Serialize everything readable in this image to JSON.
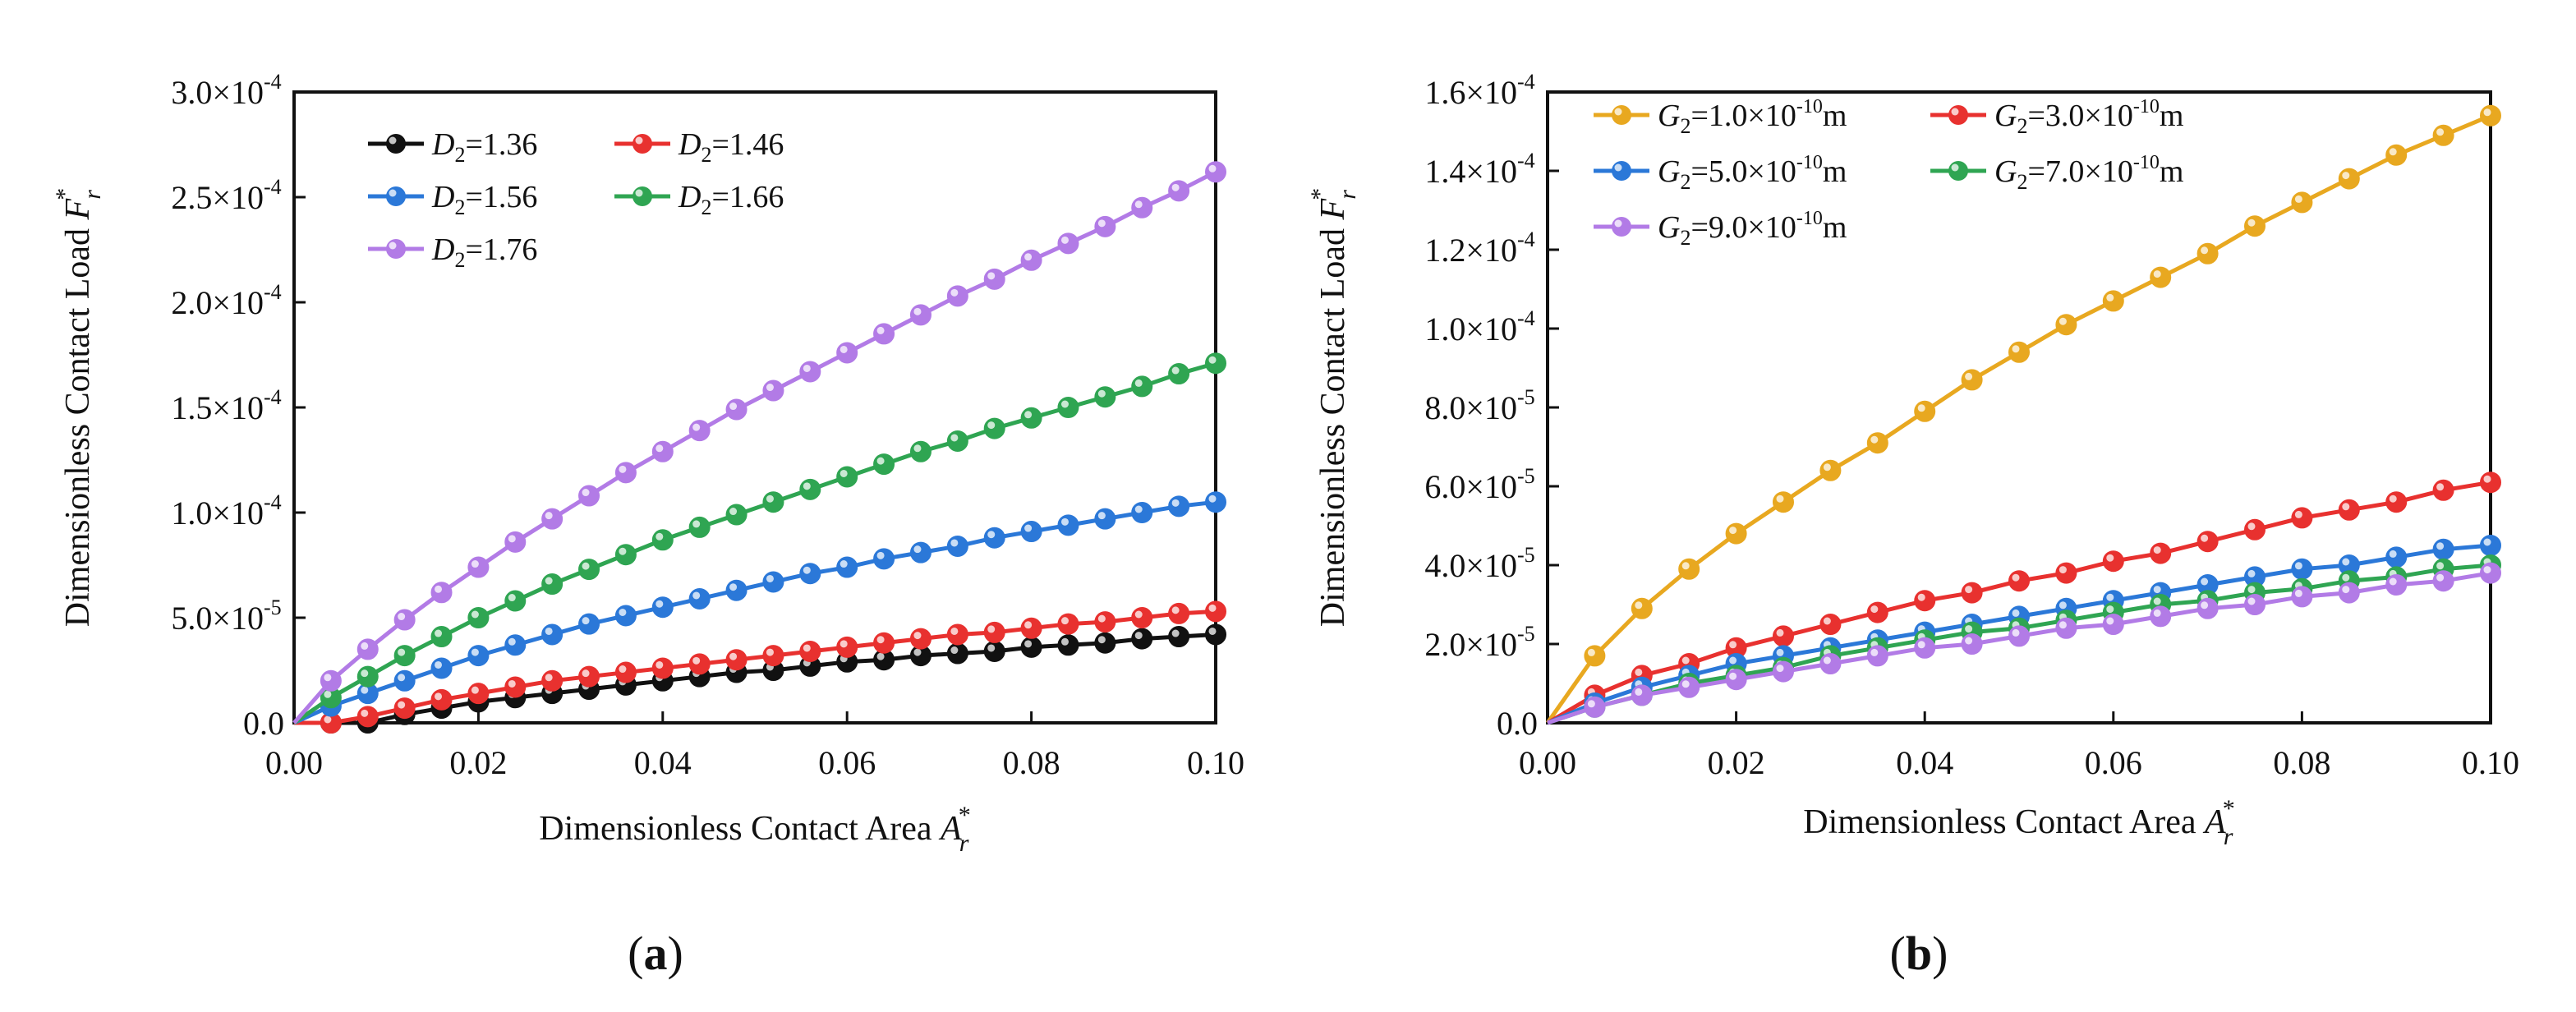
{
  "chart_data": [
    {
      "type": "line",
      "panel_label": "(a)",
      "panel_letter": "a",
      "xlabel": "Dimensionless Contact Area",
      "xlabel_sym": "A",
      "ylabel": "Dimensionless Contact Load",
      "ylabel_sym": "F",
      "sym_sub": "r",
      "sym_sup": "*",
      "xlim": [
        0,
        0.1
      ],
      "ylim": [
        0,
        0.0003
      ],
      "xticks": [
        0,
        0.02,
        0.04,
        0.06,
        0.08,
        0.1
      ],
      "xtick_labels": [
        "0.00",
        "0.02",
        "0.04",
        "0.06",
        "0.08",
        "0.10"
      ],
      "yticks": [
        0,
        5e-05,
        0.0001,
        0.00015,
        0.0002,
        0.00025,
        0.0003
      ],
      "ytick_labels": [
        {
          "m": "0.0",
          "e": ""
        },
        {
          "m": "5.0×10",
          "e": "-5"
        },
        {
          "m": "1.0×10",
          "e": "-4"
        },
        {
          "m": "1.5×10",
          "e": "-4"
        },
        {
          "m": "2.0×10",
          "e": "-4"
        },
        {
          "m": "2.5×10",
          "e": "-4"
        },
        {
          "m": "3.0×10",
          "e": "-4"
        }
      ],
      "x": [
        0.0,
        0.004,
        0.008,
        0.012,
        0.016,
        0.02,
        0.024,
        0.028,
        0.032,
        0.036,
        0.04,
        0.044,
        0.048,
        0.052,
        0.056,
        0.06,
        0.064,
        0.068,
        0.072,
        0.076,
        0.08,
        0.084,
        0.088,
        0.092,
        0.096,
        0.1
      ],
      "marker_start": 1,
      "series": [
        {
          "name": "D2=1.36",
          "sym": "D",
          "sub": "2",
          "value_text": "=1.36",
          "color": "#111111",
          "values": [
            0.0,
            0.0,
            0.0,
            4e-06,
            7e-06,
            1e-05,
            1.2e-05,
            1.4e-05,
            1.6e-05,
            1.8e-05,
            2e-05,
            2.2e-05,
            2.4e-05,
            2.5e-05,
            2.7e-05,
            2.9e-05,
            3e-05,
            3.2e-05,
            3.3e-05,
            3.4e-05,
            3.6e-05,
            3.7e-05,
            3.8e-05,
            4e-05,
            4.1e-05,
            4.2e-05
          ]
        },
        {
          "name": "D2=1.46",
          "sym": "D",
          "sub": "2",
          "value_text": "=1.46",
          "color": "#e8312f",
          "values": [
            0.0,
            0.0,
            3e-06,
            7e-06,
            1.1e-05,
            1.4e-05,
            1.7e-05,
            2e-05,
            2.2e-05,
            2.4e-05,
            2.6e-05,
            2.8e-05,
            3e-05,
            3.2e-05,
            3.4e-05,
            3.6e-05,
            3.8e-05,
            4e-05,
            4.2e-05,
            4.3e-05,
            4.5e-05,
            4.7e-05,
            4.8e-05,
            5e-05,
            5.2e-05,
            5.3e-05
          ]
        },
        {
          "name": "D2=1.56",
          "sym": "D",
          "sub": "2",
          "value_text": "=1.56",
          "color": "#2b78d8",
          "values": [
            0.0,
            8e-06,
            1.4e-05,
            2e-05,
            2.6e-05,
            3.2e-05,
            3.7e-05,
            4.2e-05,
            4.7e-05,
            5.1e-05,
            5.5e-05,
            5.9e-05,
            6.3e-05,
            6.7e-05,
            7.1e-05,
            7.4e-05,
            7.8e-05,
            8.1e-05,
            8.4e-05,
            8.8e-05,
            9.1e-05,
            9.4e-05,
            9.7e-05,
            0.0001,
            0.000103,
            0.000105
          ]
        },
        {
          "name": "D2=1.66",
          "sym": "D",
          "sub": "2",
          "value_text": "=1.66",
          "color": "#2fa552",
          "values": [
            0.0,
            1.2e-05,
            2.2e-05,
            3.2e-05,
            4.1e-05,
            5e-05,
            5.8e-05,
            6.6e-05,
            7.3e-05,
            8e-05,
            8.7e-05,
            9.3e-05,
            9.9e-05,
            0.000105,
            0.000111,
            0.000117,
            0.000123,
            0.000129,
            0.000134,
            0.00014,
            0.000145,
            0.00015,
            0.000155,
            0.00016,
            0.000166,
            0.000171
          ]
        },
        {
          "name": "D2=1.76",
          "sym": "D",
          "sub": "2",
          "value_text": "=1.76",
          "color": "#b27be6",
          "values": [
            0.0,
            2e-05,
            3.5e-05,
            4.9e-05,
            6.2e-05,
            7.4e-05,
            8.6e-05,
            9.7e-05,
            0.000108,
            0.000119,
            0.000129,
            0.000139,
            0.000149,
            0.000158,
            0.000167,
            0.000176,
            0.000185,
            0.000194,
            0.000203,
            0.000211,
            0.00022,
            0.000228,
            0.000236,
            0.000245,
            0.000253,
            0.000262
          ]
        }
      ]
    },
    {
      "type": "line",
      "panel_label": "(b)",
      "panel_letter": "b",
      "xlabel": "Dimensionless Contact Area",
      "xlabel_sym": "A",
      "ylabel": "Dimensionless Contact Load",
      "ylabel_sym": "F",
      "sym_sub": "r",
      "sym_sup": "*",
      "xlim": [
        0,
        0.1
      ],
      "ylim": [
        0,
        0.00016
      ],
      "xticks": [
        0,
        0.02,
        0.04,
        0.06,
        0.08,
        0.1
      ],
      "xtick_labels": [
        "0.00",
        "0.02",
        "0.04",
        "0.06",
        "0.08",
        "0.10"
      ],
      "yticks": [
        0,
        2e-05,
        4e-05,
        6e-05,
        8e-05,
        0.0001,
        0.00012,
        0.00014,
        0.00016
      ],
      "ytick_labels": [
        {
          "m": "0.0",
          "e": ""
        },
        {
          "m": "2.0×10",
          "e": "-5"
        },
        {
          "m": "4.0×10",
          "e": "-5"
        },
        {
          "m": "6.0×10",
          "e": "-5"
        },
        {
          "m": "8.0×10",
          "e": "-5"
        },
        {
          "m": "1.0×10",
          "e": "-4"
        },
        {
          "m": "1.2×10",
          "e": "-4"
        },
        {
          "m": "1.4×10",
          "e": "-4"
        },
        {
          "m": "1.6×10",
          "e": "-4"
        }
      ],
      "x": [
        0.0,
        0.005,
        0.01,
        0.015,
        0.02,
        0.025,
        0.03,
        0.035,
        0.04,
        0.045,
        0.05,
        0.055,
        0.06,
        0.065,
        0.07,
        0.075,
        0.08,
        0.085,
        0.09,
        0.095,
        0.1
      ],
      "marker_start": 1,
      "series": [
        {
          "name": "G2=1.0×10^-10 m",
          "sym": "G",
          "sub": "2",
          "value_text": "=1.0×10",
          "exp": "-10",
          "unit": "m",
          "color": "#e8a820",
          "values": [
            0.0,
            1.7e-05,
            2.9e-05,
            3.9e-05,
            4.8e-05,
            5.6e-05,
            6.4e-05,
            7.1e-05,
            7.9e-05,
            8.7e-05,
            9.4e-05,
            0.000101,
            0.000107,
            0.000113,
            0.000119,
            0.000126,
            0.000132,
            0.000138,
            0.000144,
            0.000149,
            0.000154
          ]
        },
        {
          "name": "G2=3.0×10^-10 m",
          "sym": "G",
          "sub": "2",
          "value_text": "=3.0×10",
          "exp": "-10",
          "unit": "m",
          "color": "#e8312f",
          "values": [
            0.0,
            7e-06,
            1.2e-05,
            1.5e-05,
            1.9e-05,
            2.2e-05,
            2.5e-05,
            2.8e-05,
            3.1e-05,
            3.3e-05,
            3.6e-05,
            3.8e-05,
            4.1e-05,
            4.3e-05,
            4.6e-05,
            4.9e-05,
            5.2e-05,
            5.4e-05,
            5.6e-05,
            5.9e-05,
            6.1e-05
          ]
        },
        {
          "name": "G2=5.0×10^-10 m",
          "sym": "G",
          "sub": "2",
          "value_text": "=5.0×10",
          "exp": "-10",
          "unit": "m",
          "color": "#2b78d8",
          "values": [
            0.0,
            5e-06,
            9e-06,
            1.2e-05,
            1.5e-05,
            1.7e-05,
            1.9e-05,
            2.1e-05,
            2.3e-05,
            2.5e-05,
            2.7e-05,
            2.9e-05,
            3.1e-05,
            3.3e-05,
            3.5e-05,
            3.7e-05,
            3.9e-05,
            4e-05,
            4.2e-05,
            4.4e-05,
            4.5e-05
          ]
        },
        {
          "name": "G2=7.0×10^-10 m",
          "sym": "G",
          "sub": "2",
          "value_text": "=7.0×10",
          "exp": "-10",
          "unit": "m",
          "color": "#2fa552",
          "values": [
            0.0,
            4e-06,
            7e-06,
            1e-05,
            1.2e-05,
            1.4e-05,
            1.7e-05,
            1.9e-05,
            2.1e-05,
            2.3e-05,
            2.4e-05,
            2.6e-05,
            2.8e-05,
            3e-05,
            3.1e-05,
            3.3e-05,
            3.4e-05,
            3.6e-05,
            3.7e-05,
            3.9e-05,
            4e-05
          ]
        },
        {
          "name": "G2=9.0×10^-10 m",
          "sym": "G",
          "sub": "2",
          "value_text": "=9.0×10",
          "exp": "-10",
          "unit": "m",
          "color": "#b27be6",
          "values": [
            0.0,
            4e-06,
            7e-06,
            9e-06,
            1.1e-05,
            1.3e-05,
            1.5e-05,
            1.7e-05,
            1.9e-05,
            2e-05,
            2.2e-05,
            2.4e-05,
            2.5e-05,
            2.7e-05,
            2.9e-05,
            3e-05,
            3.2e-05,
            3.3e-05,
            3.5e-05,
            3.6e-05,
            3.8e-05
          ]
        }
      ]
    }
  ]
}
